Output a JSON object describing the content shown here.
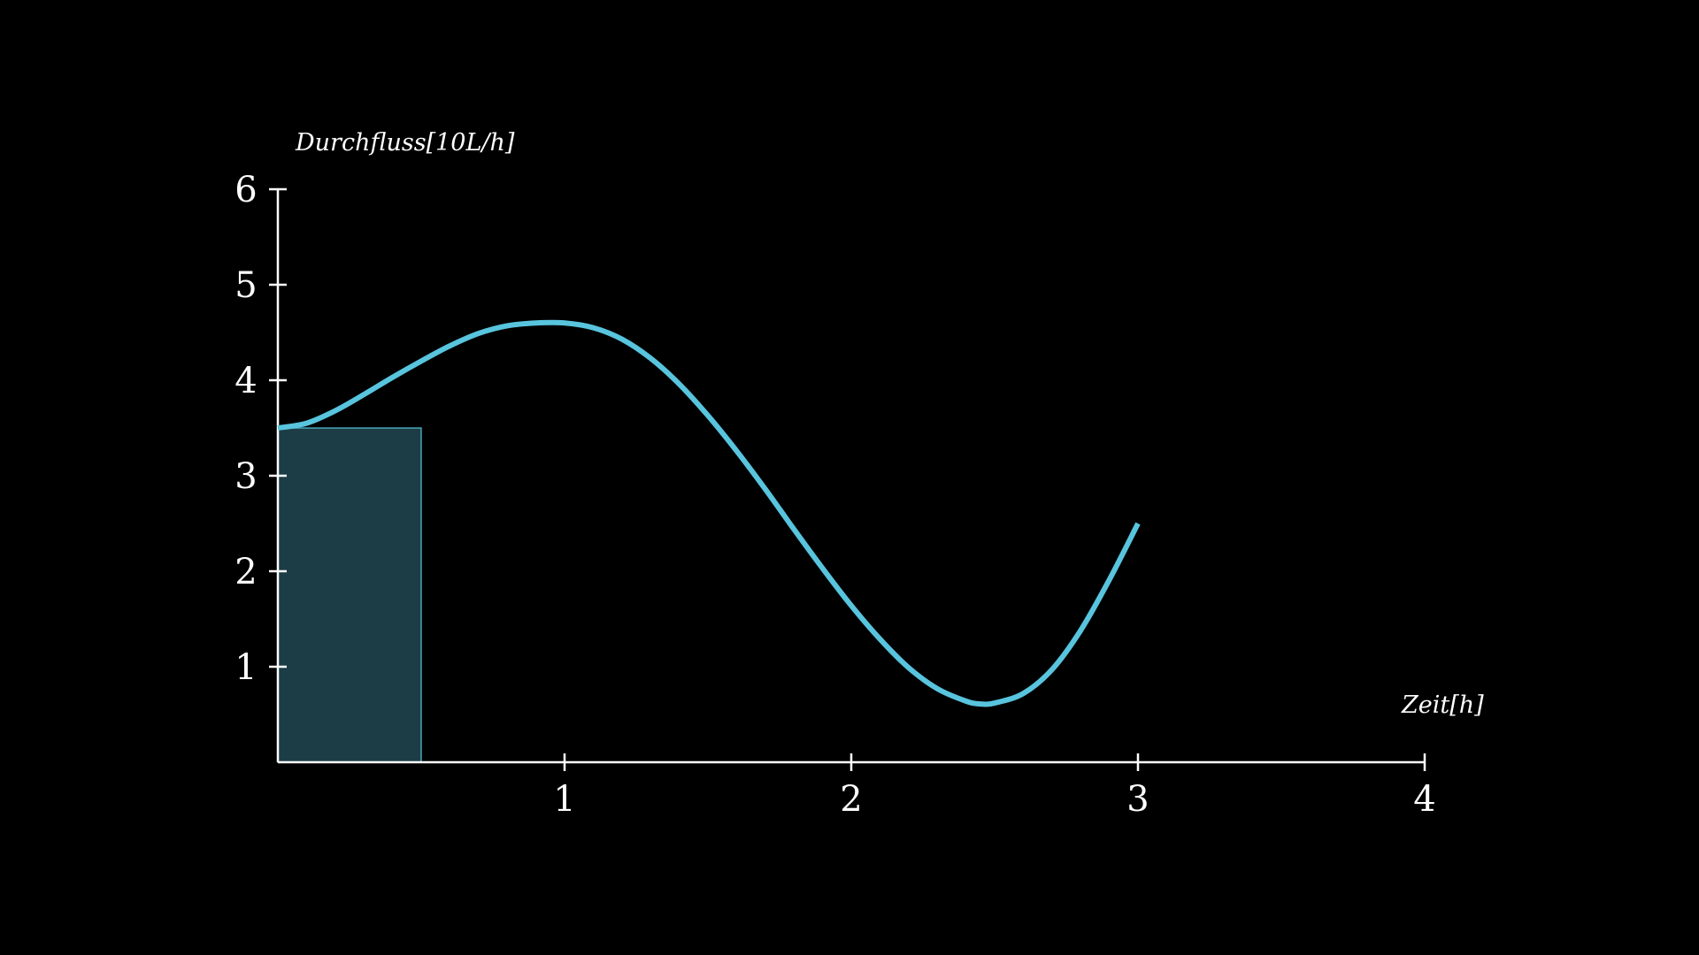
{
  "chart_data": {
    "type": "line",
    "title": "",
    "xlabel": "Zeit[h]",
    "ylabel": "Durchfluss[10L/h]",
    "xlim": [
      0,
      4
    ],
    "ylim": [
      0,
      6
    ],
    "x_ticks": [
      "1",
      "2",
      "3",
      "4"
    ],
    "y_ticks": [
      "1",
      "2",
      "3",
      "4",
      "5",
      "6"
    ],
    "grid": false,
    "legend": "none",
    "colors": {
      "background": "#000000",
      "axis": "#ffffff",
      "curve": "#58c4dd",
      "rect_fill": "#1c3d45",
      "rect_stroke": "#58c4dd"
    },
    "series": [
      {
        "x": [
          0,
          0.1,
          0.2,
          0.3,
          0.4,
          0.5,
          0.6,
          0.7,
          0.8,
          0.9,
          1.0,
          1.1,
          1.2,
          1.3,
          1.4,
          1.5,
          1.6,
          1.7,
          1.8,
          1.9,
          2.0,
          2.1,
          2.2,
          2.3,
          2.4,
          2.45,
          2.5,
          2.6,
          2.7,
          2.8,
          2.9,
          3.0
        ],
        "y": [
          3.5,
          3.55,
          3.68,
          3.85,
          4.03,
          4.2,
          4.36,
          4.49,
          4.57,
          4.6,
          4.6,
          4.55,
          4.43,
          4.23,
          3.96,
          3.63,
          3.26,
          2.86,
          2.44,
          2.03,
          1.64,
          1.29,
          0.99,
          0.77,
          0.64,
          0.61,
          0.62,
          0.72,
          0.97,
          1.38,
          1.91,
          2.5
        ]
      }
    ],
    "highlight_rect": {
      "x_from": 0,
      "x_to": 0.5,
      "height": 3.5
    }
  }
}
